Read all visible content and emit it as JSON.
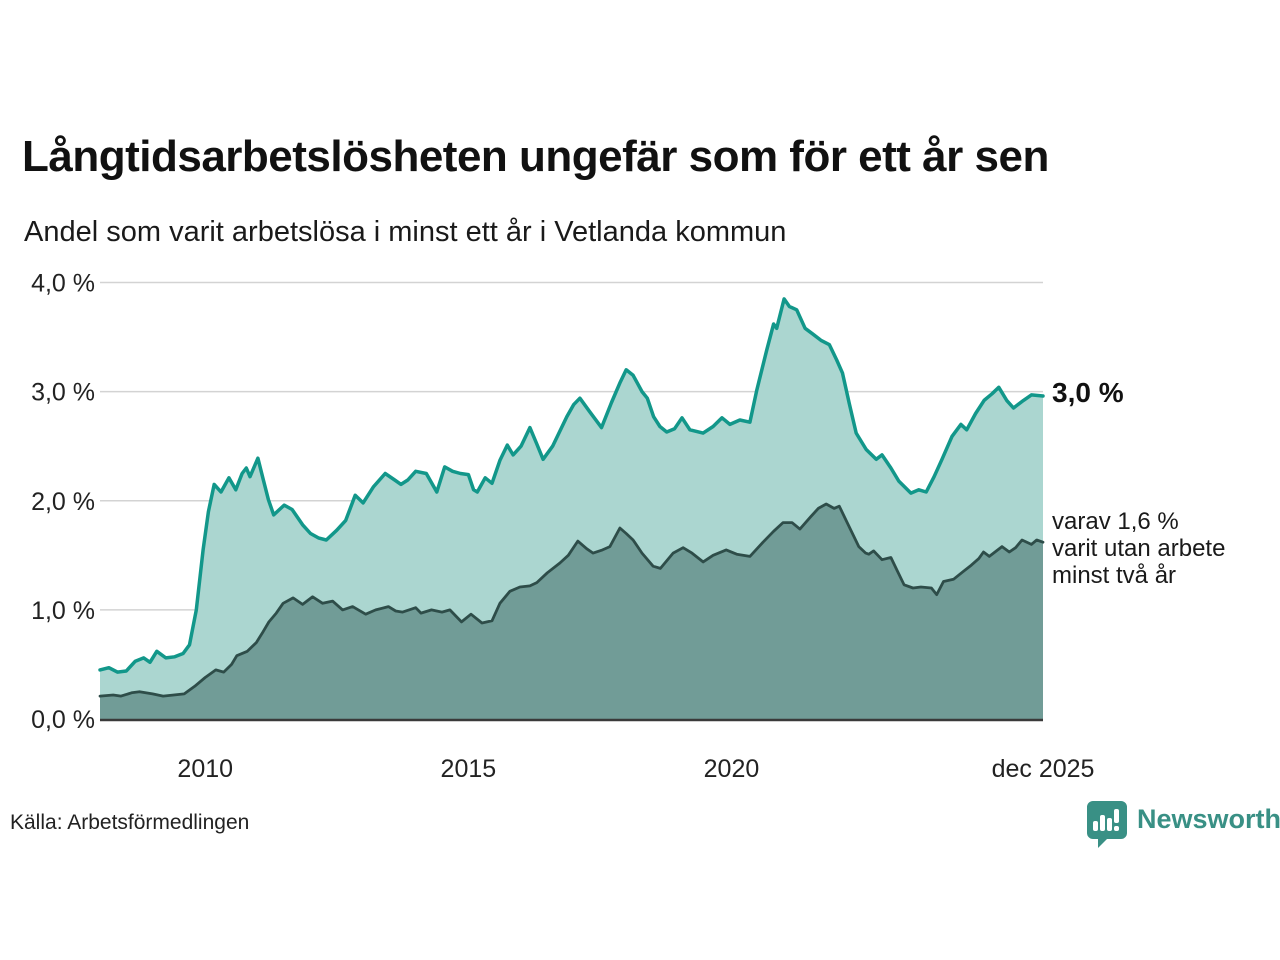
{
  "header": {
    "title": "Långtidsarbetslösheten ungefär som för ett år sen",
    "subtitle": "Andel som varit arbetslösa i minst ett år i Vetlanda kommun"
  },
  "annotations": {
    "latest_total": "3,0 %",
    "note_lines": [
      "varav 1,6 %",
      "varit utan arbete",
      "minst två år"
    ]
  },
  "footer": {
    "source": "Källa: Arbetsförmedlingen",
    "brand": "Newsworthy",
    "brand_icon": "bar-chart-speech-bubble-icon"
  },
  "colors": {
    "total_line": "#12978a",
    "total_fill": "#abd6d0",
    "two_year_line": "#2e4d49",
    "two_year_fill": "#719c97",
    "gridline": "rgba(80,80,80,0.25)",
    "axis": "#3a3a3a",
    "brand_teal": "#399085"
  },
  "chart_data": {
    "type": "area",
    "title": "Långtidsarbetslösheten ungefär som för ett år sen",
    "subtitle": "Andel som varit arbetslösa i minst ett år i Vetlanda kommun",
    "xlabel": "",
    "ylabel": "",
    "grid": true,
    "legend_position": "right-annotations",
    "xlim": [
      2008.0,
      2025.92
    ],
    "ylim": [
      0,
      4
    ],
    "y_ticks": [
      {
        "label": "4,0 %",
        "value": 4.0
      },
      {
        "label": "3,0 %",
        "value": 3.0
      },
      {
        "label": "2,0 %",
        "value": 2.0
      },
      {
        "label": "1,0 %",
        "value": 1.0
      },
      {
        "label": "0,0 %",
        "value": 0.0
      }
    ],
    "x_ticks": [
      {
        "label": "2010",
        "year": 2010
      },
      {
        "label": "2015",
        "year": 2015
      },
      {
        "label": "2020",
        "year": 2020
      },
      {
        "label": "dec 2025",
        "year": 2025.92
      }
    ],
    "unit": "%",
    "series": [
      {
        "id": "arbetslosa-minst-ett-ar",
        "latest_value_label": "3,0 %",
        "points": [
          [
            2008.0,
            0.45
          ],
          [
            2008.17,
            0.47
          ],
          [
            2008.33,
            0.43
          ],
          [
            2008.5,
            0.44
          ],
          [
            2008.67,
            0.53
          ],
          [
            2008.83,
            0.56
          ],
          [
            2008.95,
            0.52
          ],
          [
            2009.08,
            0.62
          ],
          [
            2009.25,
            0.56
          ],
          [
            2009.42,
            0.57
          ],
          [
            2009.58,
            0.6
          ],
          [
            2009.7,
            0.68
          ],
          [
            2009.83,
            1.0
          ],
          [
            2009.96,
            1.55
          ],
          [
            2010.06,
            1.9
          ],
          [
            2010.17,
            2.15
          ],
          [
            2010.3,
            2.08
          ],
          [
            2010.45,
            2.21
          ],
          [
            2010.58,
            2.1
          ],
          [
            2010.7,
            2.25
          ],
          [
            2010.78,
            2.3
          ],
          [
            2010.85,
            2.22
          ],
          [
            2011.0,
            2.39
          ],
          [
            2011.1,
            2.2
          ],
          [
            2011.2,
            2.01
          ],
          [
            2011.3,
            1.87
          ],
          [
            2011.5,
            1.96
          ],
          [
            2011.65,
            1.92
          ],
          [
            2011.85,
            1.78
          ],
          [
            2012.0,
            1.7
          ],
          [
            2012.15,
            1.66
          ],
          [
            2012.3,
            1.64
          ],
          [
            2012.5,
            1.73
          ],
          [
            2012.67,
            1.82
          ],
          [
            2012.85,
            2.05
          ],
          [
            2013.0,
            1.98
          ],
          [
            2013.2,
            2.13
          ],
          [
            2013.42,
            2.25
          ],
          [
            2013.6,
            2.19
          ],
          [
            2013.72,
            2.15
          ],
          [
            2013.85,
            2.19
          ],
          [
            2014.0,
            2.27
          ],
          [
            2014.2,
            2.25
          ],
          [
            2014.4,
            2.08
          ],
          [
            2014.55,
            2.31
          ],
          [
            2014.7,
            2.27
          ],
          [
            2014.85,
            2.25
          ],
          [
            2015.0,
            2.24
          ],
          [
            2015.1,
            2.1
          ],
          [
            2015.17,
            2.08
          ],
          [
            2015.32,
            2.21
          ],
          [
            2015.45,
            2.16
          ],
          [
            2015.6,
            2.37
          ],
          [
            2015.74,
            2.51
          ],
          [
            2015.85,
            2.42
          ],
          [
            2016.0,
            2.5
          ],
          [
            2016.17,
            2.67
          ],
          [
            2016.3,
            2.52
          ],
          [
            2016.42,
            2.38
          ],
          [
            2016.6,
            2.5
          ],
          [
            2016.87,
            2.77
          ],
          [
            2017.0,
            2.88
          ],
          [
            2017.12,
            2.94
          ],
          [
            2017.3,
            2.82
          ],
          [
            2017.53,
            2.67
          ],
          [
            2017.72,
            2.9
          ],
          [
            2017.88,
            3.08
          ],
          [
            2018.0,
            3.2
          ],
          [
            2018.13,
            3.15
          ],
          [
            2018.3,
            3.0
          ],
          [
            2018.4,
            2.94
          ],
          [
            2018.52,
            2.77
          ],
          [
            2018.64,
            2.68
          ],
          [
            2018.77,
            2.63
          ],
          [
            2018.92,
            2.66
          ],
          [
            2019.06,
            2.76
          ],
          [
            2019.21,
            2.65
          ],
          [
            2019.46,
            2.62
          ],
          [
            2019.65,
            2.68
          ],
          [
            2019.82,
            2.76
          ],
          [
            2019.97,
            2.7
          ],
          [
            2020.16,
            2.74
          ],
          [
            2020.35,
            2.72
          ],
          [
            2020.48,
            3.01
          ],
          [
            2020.67,
            3.38
          ],
          [
            2020.8,
            3.62
          ],
          [
            2020.86,
            3.58
          ],
          [
            2021.0,
            3.85
          ],
          [
            2021.1,
            3.78
          ],
          [
            2021.24,
            3.75
          ],
          [
            2021.4,
            3.58
          ],
          [
            2021.54,
            3.53
          ],
          [
            2021.7,
            3.47
          ],
          [
            2021.86,
            3.43
          ],
          [
            2022.0,
            3.29
          ],
          [
            2022.11,
            3.17
          ],
          [
            2022.24,
            2.89
          ],
          [
            2022.37,
            2.62
          ],
          [
            2022.56,
            2.47
          ],
          [
            2022.75,
            2.38
          ],
          [
            2022.86,
            2.42
          ],
          [
            2023.03,
            2.3
          ],
          [
            2023.18,
            2.18
          ],
          [
            2023.41,
            2.07
          ],
          [
            2023.56,
            2.1
          ],
          [
            2023.7,
            2.08
          ],
          [
            2023.85,
            2.22
          ],
          [
            2024.0,
            2.38
          ],
          [
            2024.19,
            2.59
          ],
          [
            2024.36,
            2.7
          ],
          [
            2024.47,
            2.65
          ],
          [
            2024.64,
            2.8
          ],
          [
            2024.8,
            2.92
          ],
          [
            2024.95,
            2.98
          ],
          [
            2025.08,
            3.04
          ],
          [
            2025.23,
            2.92
          ],
          [
            2025.36,
            2.85
          ],
          [
            2025.55,
            2.92
          ],
          [
            2025.7,
            2.97
          ],
          [
            2025.92,
            2.96
          ]
        ]
      },
      {
        "id": "utan-arbete-minst-tva-ar",
        "latest_value_label": "1,6 %",
        "points": [
          [
            2008.0,
            0.21
          ],
          [
            2008.25,
            0.22
          ],
          [
            2008.4,
            0.21
          ],
          [
            2008.6,
            0.24
          ],
          [
            2008.75,
            0.25
          ],
          [
            2009.0,
            0.23
          ],
          [
            2009.2,
            0.21
          ],
          [
            2009.4,
            0.22
          ],
          [
            2009.6,
            0.23
          ],
          [
            2009.8,
            0.3
          ],
          [
            2010.0,
            0.38
          ],
          [
            2010.2,
            0.45
          ],
          [
            2010.35,
            0.43
          ],
          [
            2010.5,
            0.5
          ],
          [
            2010.6,
            0.58
          ],
          [
            2010.8,
            0.62
          ],
          [
            2010.97,
            0.7
          ],
          [
            2011.1,
            0.8
          ],
          [
            2011.21,
            0.89
          ],
          [
            2011.35,
            0.97
          ],
          [
            2011.48,
            1.06
          ],
          [
            2011.67,
            1.11
          ],
          [
            2011.85,
            1.05
          ],
          [
            2012.04,
            1.12
          ],
          [
            2012.23,
            1.06
          ],
          [
            2012.42,
            1.08
          ],
          [
            2012.61,
            1.0
          ],
          [
            2012.8,
            1.03
          ],
          [
            2013.05,
            0.96
          ],
          [
            2013.24,
            1.0
          ],
          [
            2013.48,
            1.03
          ],
          [
            2013.62,
            0.99
          ],
          [
            2013.75,
            0.98
          ],
          [
            2014.0,
            1.02
          ],
          [
            2014.1,
            0.97
          ],
          [
            2014.3,
            1.0
          ],
          [
            2014.5,
            0.98
          ],
          [
            2014.65,
            1.0
          ],
          [
            2014.87,
            0.89
          ],
          [
            2015.05,
            0.96
          ],
          [
            2015.26,
            0.88
          ],
          [
            2015.45,
            0.9
          ],
          [
            2015.6,
            1.06
          ],
          [
            2015.79,
            1.17
          ],
          [
            2015.98,
            1.21
          ],
          [
            2016.17,
            1.22
          ],
          [
            2016.3,
            1.25
          ],
          [
            2016.5,
            1.34
          ],
          [
            2016.74,
            1.43
          ],
          [
            2016.9,
            1.5
          ],
          [
            2017.08,
            1.63
          ],
          [
            2017.25,
            1.56
          ],
          [
            2017.37,
            1.52
          ],
          [
            2017.55,
            1.55
          ],
          [
            2017.69,
            1.58
          ],
          [
            2017.88,
            1.75
          ],
          [
            2018.0,
            1.7
          ],
          [
            2018.13,
            1.64
          ],
          [
            2018.3,
            1.52
          ],
          [
            2018.51,
            1.4
          ],
          [
            2018.65,
            1.38
          ],
          [
            2018.89,
            1.52
          ],
          [
            2019.08,
            1.57
          ],
          [
            2019.25,
            1.52
          ],
          [
            2019.46,
            1.44
          ],
          [
            2019.65,
            1.5
          ],
          [
            2019.9,
            1.55
          ],
          [
            2020.1,
            1.51
          ],
          [
            2020.35,
            1.49
          ],
          [
            2020.6,
            1.62
          ],
          [
            2020.8,
            1.72
          ],
          [
            2020.98,
            1.8
          ],
          [
            2021.15,
            1.8
          ],
          [
            2021.3,
            1.74
          ],
          [
            2021.5,
            1.85
          ],
          [
            2021.65,
            1.93
          ],
          [
            2021.8,
            1.97
          ],
          [
            2021.95,
            1.93
          ],
          [
            2022.05,
            1.95
          ],
          [
            2022.2,
            1.8
          ],
          [
            2022.42,
            1.58
          ],
          [
            2022.55,
            1.52
          ],
          [
            2022.61,
            1.51
          ],
          [
            2022.7,
            1.54
          ],
          [
            2022.86,
            1.46
          ],
          [
            2023.03,
            1.48
          ],
          [
            2023.15,
            1.36
          ],
          [
            2023.28,
            1.23
          ],
          [
            2023.45,
            1.2
          ],
          [
            2023.6,
            1.21
          ],
          [
            2023.8,
            1.2
          ],
          [
            2023.9,
            1.14
          ],
          [
            2024.03,
            1.26
          ],
          [
            2024.22,
            1.28
          ],
          [
            2024.4,
            1.35
          ],
          [
            2024.56,
            1.41
          ],
          [
            2024.7,
            1.47
          ],
          [
            2024.79,
            1.53
          ],
          [
            2024.9,
            1.49
          ],
          [
            2025.14,
            1.58
          ],
          [
            2025.28,
            1.53
          ],
          [
            2025.4,
            1.57
          ],
          [
            2025.52,
            1.64
          ],
          [
            2025.7,
            1.6
          ],
          [
            2025.8,
            1.64
          ],
          [
            2025.92,
            1.62
          ]
        ]
      }
    ]
  }
}
